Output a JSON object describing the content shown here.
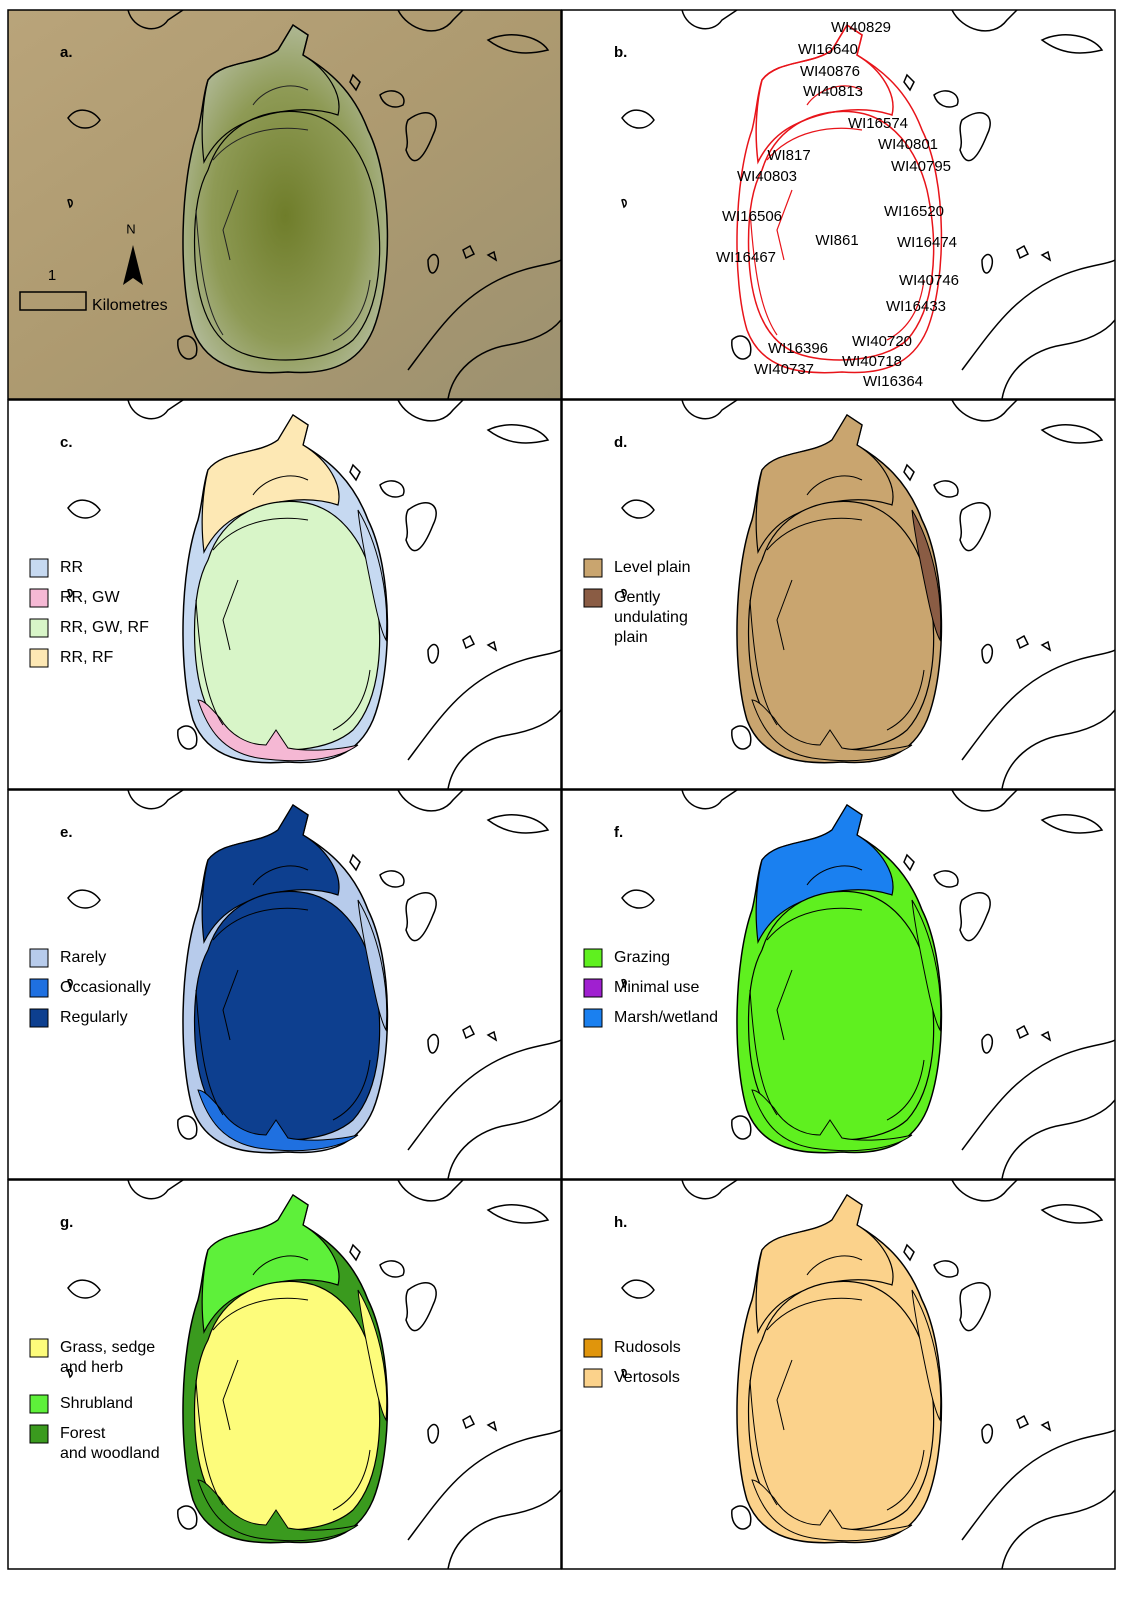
{
  "panels": [
    {
      "label": "a.",
      "scale_label": "1",
      "scale_unit": "Kilometres",
      "north": "N"
    },
    {
      "label": "b.",
      "polygon_labels": [
        "WI40829",
        "WI16640",
        "WI40876",
        "WI40813",
        "WI16574",
        "WI40801",
        "WI817",
        "WI40795",
        "WI40803",
        "WI16520",
        "WI16506",
        "WI861",
        "WI16474",
        "WI16467",
        "WI40746",
        "WI16433",
        "WI40720",
        "WI16396",
        "WI40718",
        "WI40737",
        "WI16364"
      ]
    },
    {
      "label": "c.",
      "legend": [
        {
          "text": [
            "RR"
          ],
          "color": "#c6d9f1"
        },
        {
          "text": [
            "RR, GW"
          ],
          "color": "#f5b8d4"
        },
        {
          "text": [
            "RR, GW, RF"
          ],
          "color": "#d8f5c8"
        },
        {
          "text": [
            "RR, RF"
          ],
          "color": "#fde8b4"
        }
      ]
    },
    {
      "label": "d.",
      "legend": [
        {
          "text": [
            "Level plain"
          ],
          "color": "#c9a56f"
        },
        {
          "text": [
            "Gently",
            "undulating",
            "plain"
          ],
          "color": "#8a5c44"
        }
      ]
    },
    {
      "label": "e.",
      "legend": [
        {
          "text": [
            "Rarely"
          ],
          "color": "#b7cbeb"
        },
        {
          "text": [
            "Occasionally"
          ],
          "color": "#1f70e0"
        },
        {
          "text": [
            "Regularly"
          ],
          "color": "#0d3f8f"
        }
      ]
    },
    {
      "label": "f.",
      "legend": [
        {
          "text": [
            "Grazing"
          ],
          "color": "#5ff01f"
        },
        {
          "text": [
            "Minimal use"
          ],
          "color": "#a020d0"
        },
        {
          "text": [
            "Marsh/wetland"
          ],
          "color": "#1a80f0"
        }
      ]
    },
    {
      "label": "g.",
      "legend": [
        {
          "text": [
            "Grass, sedge",
            "and herb"
          ],
          "color": "#fdfc7b"
        },
        {
          "text": [
            "Shrubland"
          ],
          "color": "#5ef03a"
        },
        {
          "text": [
            "Forest",
            "and woodland"
          ],
          "color": "#3a9a1e"
        }
      ]
    },
    {
      "label": "h.",
      "legend": [
        {
          "text": [
            "Rudosols"
          ],
          "color": "#e0950c"
        },
        {
          "text": [
            "Vertosols"
          ],
          "color": "#fbd28b"
        }
      ]
    }
  ]
}
